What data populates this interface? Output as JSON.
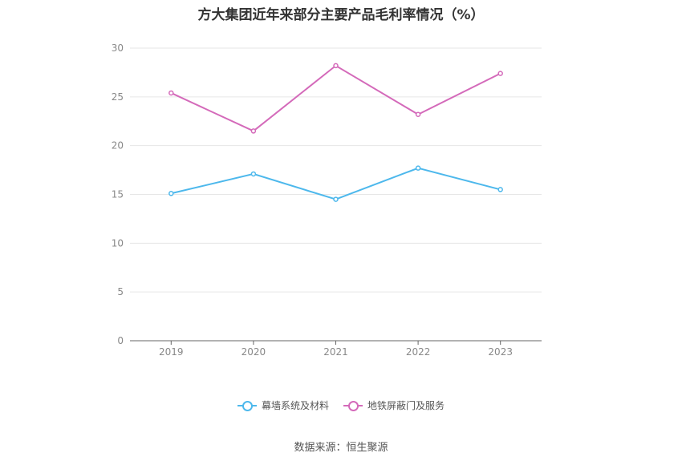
{
  "chart_data": {
    "type": "line",
    "title": "方大集团近年来部分主要产品毛利率情况（%）",
    "categories": [
      "2019",
      "2020",
      "2021",
      "2022",
      "2023"
    ],
    "ylim": [
      0,
      30
    ],
    "yticks": [
      0,
      5,
      10,
      15,
      20,
      25,
      30
    ],
    "grid": true,
    "legend_position": "bottom",
    "series": [
      {
        "name": "幕墙系统及材料",
        "color": "#4db8ec",
        "values": [
          15.1,
          17.1,
          14.5,
          17.7,
          15.5
        ]
      },
      {
        "name": "地铁屏蔽门及服务",
        "color": "#d46aba",
        "values": [
          25.4,
          21.5,
          28.2,
          23.2,
          27.4
        ]
      }
    ]
  },
  "source": "数据来源：恒生聚源"
}
